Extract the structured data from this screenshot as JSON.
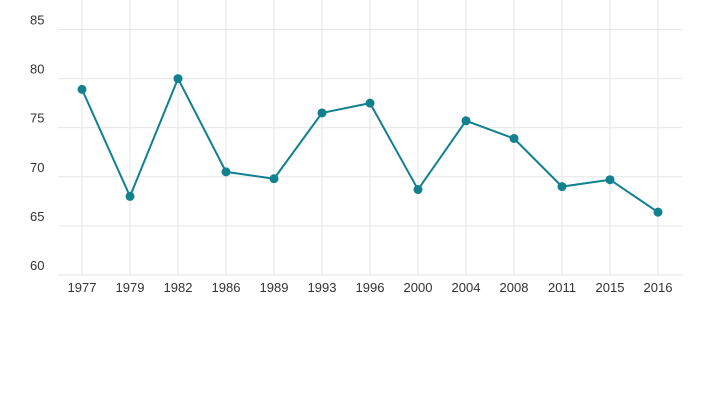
{
  "chart_data": {
    "type": "line",
    "title": "",
    "xlabel": "",
    "ylabel": "",
    "categories": [
      "1977",
      "1979",
      "1982",
      "1986",
      "1989",
      "1993",
      "1996",
      "2000",
      "2004",
      "2008",
      "2011",
      "2015",
      "2016"
    ],
    "series": [
      {
        "values": [
          78.9,
          68.0,
          80.0,
          70.5,
          69.8,
          76.5,
          77.5,
          68.7,
          75.7,
          73.9,
          69.0,
          69.7,
          66.4
        ]
      }
    ],
    "ylim": [
      60,
      88
    ],
    "yticks": [
      60,
      65,
      70,
      75,
      80,
      85
    ],
    "grid": true,
    "legend": "none",
    "colors": {
      "series": "#11808f",
      "grid": "#e6e6e6",
      "tick_text": "#333333"
    }
  }
}
